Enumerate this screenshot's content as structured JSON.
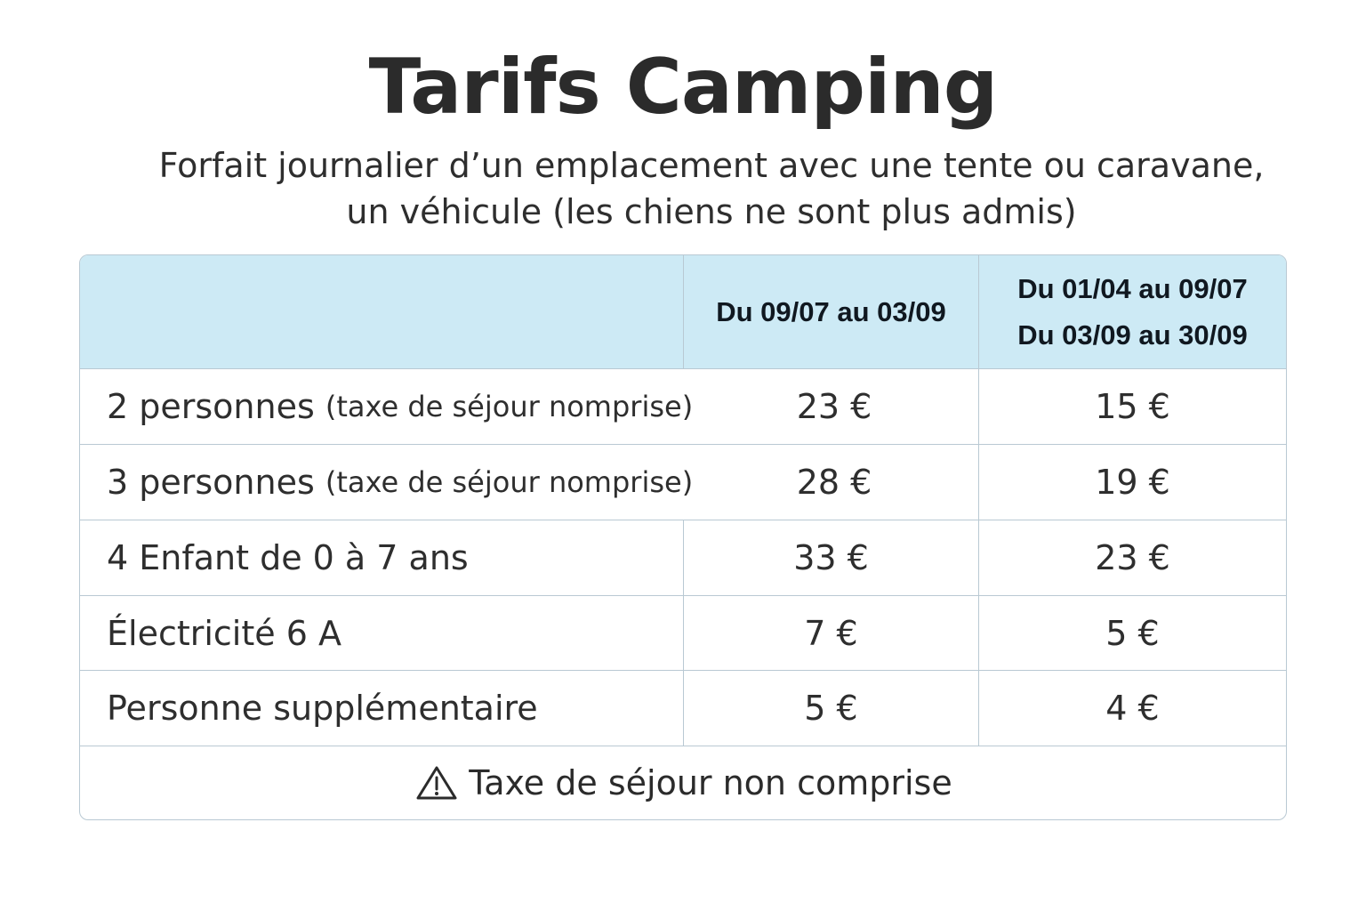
{
  "title": "Tarifs Camping",
  "subtitle": {
    "line1": "Forfait journalier d’un emplacement avec une tente ou caravane,",
    "line2": "un véhicule (les chiens ne sont plus admis)"
  },
  "table": {
    "headers": {
      "period_a": "Du 09/07 au 03/09",
      "period_b_line1": "Du 01/04 au 09/07",
      "period_b_line2": "Du 03/09 au 30/09"
    },
    "rows": [
      {
        "label": "2 personnes",
        "note": "(taxe de séjour nomprise)",
        "price_a": "23 €",
        "price_b": "15 €"
      },
      {
        "label": "3 personnes",
        "note": "(taxe de séjour nomprise)",
        "price_a": "28 €",
        "price_b": "19 €"
      },
      {
        "label": "4 Enfant de 0 à 7 ans",
        "note": "",
        "price_a": "33 €",
        "price_b": "23 €"
      },
      {
        "label": "Électricité 6 A",
        "note": "",
        "price_a": "7 €",
        "price_b": "5 €"
      },
      {
        "label": "Personne supplémentaire",
        "note": "",
        "price_a": "5 €",
        "price_b": "4 €"
      }
    ],
    "footer": "Taxe de séjour non comprise"
  },
  "icons": {
    "footer_icon": "warning-triangle-icon"
  },
  "colors": {
    "header_bg": "#cdeaf5",
    "border": "#b9c9d3",
    "text": "#2e2e2e"
  }
}
